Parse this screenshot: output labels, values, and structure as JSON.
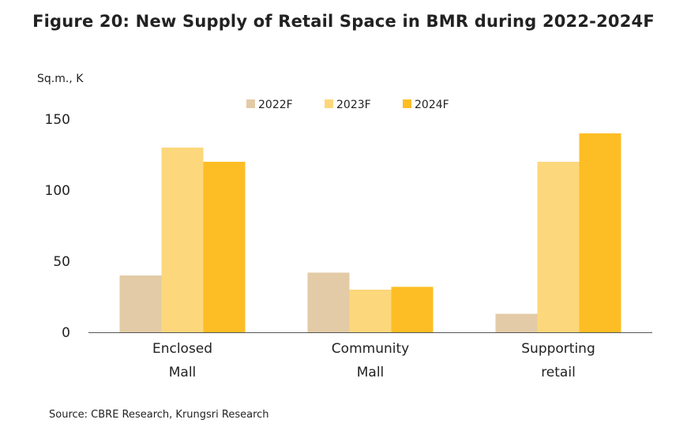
{
  "title": "Figure 20: New Supply of Retail Space in BMR during 2022-2024F",
  "source": "Source: CBRE Research, Krungsri Research",
  "colors": {
    "2022F": "#e2cba6",
    "2023F": "#fdd77b",
    "2024F": "#fdbd24",
    "axis": "#555555"
  },
  "chart_data": {
    "type": "bar",
    "title": "Figure 20: New Supply of Retail Space in BMR during 2022-2024F",
    "ylabel": "Sq.m., K",
    "xlabel": "",
    "ylim": [
      0,
      150
    ],
    "yticks": [
      0,
      50,
      100,
      150
    ],
    "grid": false,
    "legend_position": "top-center",
    "categories": [
      [
        "Enclosed",
        "Mall"
      ],
      [
        "Community",
        "Mall"
      ],
      [
        "Supporting",
        "retail"
      ]
    ],
    "series": [
      {
        "name": "2022F",
        "values": [
          40,
          42,
          13
        ]
      },
      {
        "name": "2023F",
        "values": [
          130,
          30,
          120
        ]
      },
      {
        "name": "2024F",
        "values": [
          120,
          32,
          140
        ]
      }
    ]
  }
}
